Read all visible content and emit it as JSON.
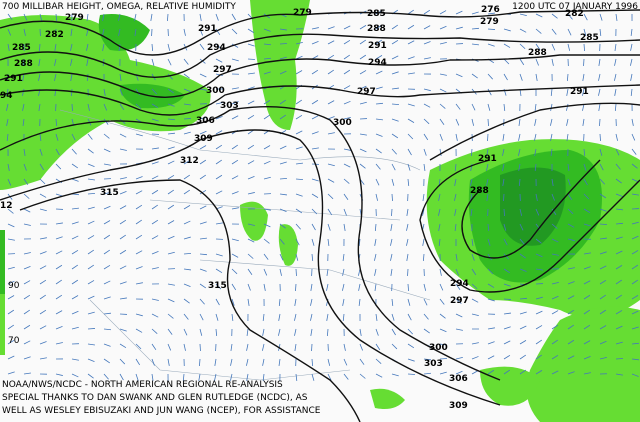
{
  "header": {
    "title": "700 MILLIBAR HEIGHT, OMEGA, RELATIVE HUMIDITY",
    "time": "1200 UTC 07 JANUARY 1996"
  },
  "legend": {
    "labels": [
      "90",
      "70"
    ]
  },
  "contours": [
    "279",
    "282",
    "285",
    "288",
    "291",
    "94",
    "291",
    "294",
    "297",
    "300",
    "303",
    "306",
    "309",
    "312",
    "315",
    "12",
    "315",
    "279",
    "285",
    "288",
    "291",
    "294",
    "297",
    "300",
    "276",
    "279",
    "282",
    "285",
    "288",
    "291",
    "291",
    "288",
    "294",
    "297",
    "300",
    "303",
    "306",
    "309"
  ],
  "footer": [
    "NOAA/NWS/NCDC - NORTH AMERICAN REGIONAL RE-ANALYSIS",
    "SPECIAL THANKS TO DAN SWANK AND GLEN RUTLEDGE (NCDC), AS",
    "WELL AS WESLEY EBISUZAKI AND JUN WANG (NCEP), FOR ASSISTANCE"
  ]
}
